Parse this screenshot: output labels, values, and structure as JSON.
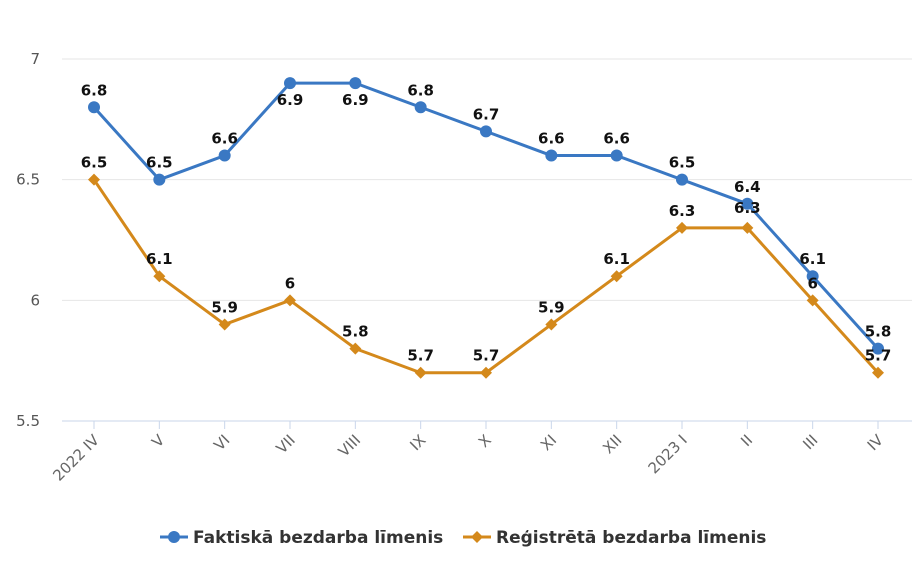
{
  "chart_data": {
    "type": "line",
    "title": "",
    "xlabel": "",
    "ylabel": "",
    "ylim": [
      5.5,
      7
    ],
    "yticks": [
      "5.5",
      "6",
      "6.5",
      "7"
    ],
    "categories": [
      "2022 IV",
      "V",
      "VI",
      "VII",
      "VIII",
      "IX",
      "X",
      "XI",
      "XII",
      "2023 I",
      "II",
      "III",
      "IV"
    ],
    "grid": "horizontal",
    "legend_position": "bottom-center",
    "series": [
      {
        "name": "Faktiskā bezdarba līmenis",
        "color": "#3a78c3",
        "marker": "circle",
        "values": [
          6.8,
          6.5,
          6.6,
          6.9,
          6.9,
          6.8,
          6.7,
          6.6,
          6.6,
          6.5,
          6.4,
          6.1,
          5.8
        ],
        "labels": [
          "6.8",
          "6.5",
          "6.6",
          "6.9",
          "6.9",
          "6.8",
          "6.7",
          "6.6",
          "6.6",
          "6.5",
          "6.4",
          "6.1",
          "5.8"
        ]
      },
      {
        "name": "Reģistrētā bezdarba līmenis",
        "color": "#d4891b",
        "marker": "diamond",
        "values": [
          6.5,
          6.1,
          5.9,
          6.0,
          5.8,
          5.7,
          5.7,
          5.9,
          6.1,
          6.3,
          6.3,
          6.0,
          5.7
        ],
        "labels": [
          "6.5",
          "6.1",
          "5.9",
          "6",
          "5.8",
          "5.7",
          "5.7",
          "5.9",
          "6.1",
          "6.3",
          "6.3",
          "6",
          "5.7"
        ]
      }
    ]
  }
}
